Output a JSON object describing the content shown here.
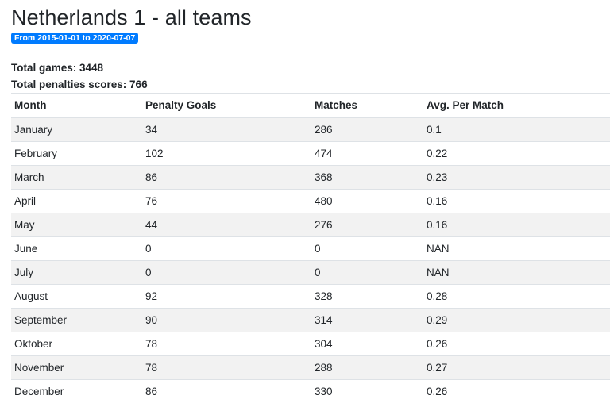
{
  "title": "Netherlands 1 - all teams",
  "date_range": "From 2015-01-01 to 2020-07-07",
  "totals": {
    "games": "Total games: 3448",
    "penalties": "Total penalties scores: 766"
  },
  "table": {
    "headers": [
      "Month",
      "Penalty Goals",
      "Matches",
      "Avg. Per Match"
    ],
    "rows": [
      [
        "January",
        "34",
        "286",
        "0.1"
      ],
      [
        "February",
        "102",
        "474",
        "0.22"
      ],
      [
        "March",
        "86",
        "368",
        "0.23"
      ],
      [
        "April",
        "76",
        "480",
        "0.16"
      ],
      [
        "May",
        "44",
        "276",
        "0.16"
      ],
      [
        "June",
        "0",
        "0",
        "NAN"
      ],
      [
        "July",
        "0",
        "0",
        "NAN"
      ],
      [
        "August",
        "92",
        "328",
        "0.28"
      ],
      [
        "September",
        "90",
        "314",
        "0.29"
      ],
      [
        "Oktober",
        "78",
        "304",
        "0.26"
      ],
      [
        "November",
        "78",
        "288",
        "0.27"
      ],
      [
        "December",
        "86",
        "330",
        "0.26"
      ]
    ]
  }
}
